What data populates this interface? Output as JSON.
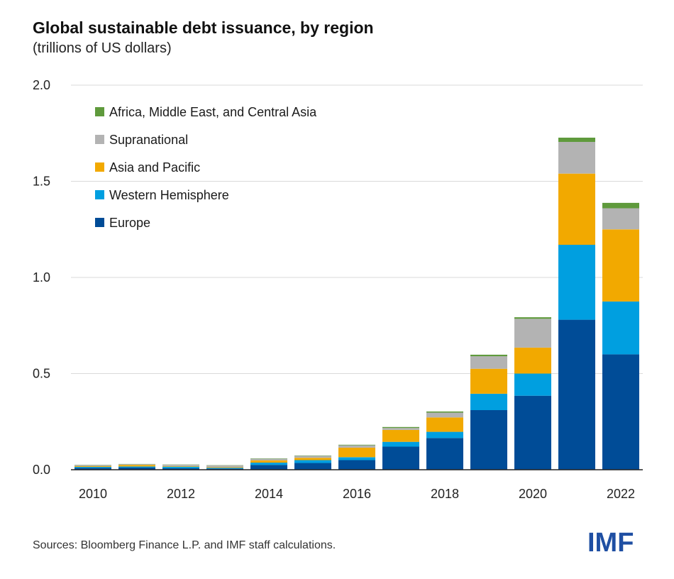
{
  "title": "Global sustainable debt issuance, by region",
  "subtitle": "(trillions of US dollars)",
  "source": "Sources: Bloomberg Finance L.P. and IMF staff calculations.",
  "logo": "IMF",
  "colors": {
    "Europe": "#004c97",
    "Western Hemisphere": "#009fe0",
    "Asia and Pacific": "#f2a900",
    "Supranational": "#b3b3b3",
    "Africa, Middle East, and Central Asia": "#5f9a3c",
    "grid": "#d9d9d9",
    "axis": "#222222"
  },
  "chart_data": {
    "type": "bar",
    "stacked": true,
    "categories": [
      "2010",
      "2011",
      "2012",
      "2013",
      "2014",
      "2015",
      "2016",
      "2017",
      "2018",
      "2019",
      "2020",
      "2021",
      "2022"
    ],
    "x_tick_labels": [
      "2010",
      "2012",
      "2014",
      "2016",
      "2018",
      "2020",
      "2022"
    ],
    "y_ticks": [
      "0.0",
      "0.5",
      "1.0",
      "1.5",
      "2.0"
    ],
    "ylim": [
      0,
      2.0
    ],
    "grid": true,
    "legend_position": "top-left",
    "legend_order": [
      "Africa, Middle East, and Central Asia",
      "Supranational",
      "Asia and Pacific",
      "Western Hemisphere",
      "Europe"
    ],
    "series": [
      {
        "name": "Europe",
        "values": [
          0.01,
          0.012,
          0.008,
          0.006,
          0.025,
          0.035,
          0.05,
          0.12,
          0.165,
          0.31,
          0.385,
          0.78,
          0.6
        ]
      },
      {
        "name": "Western Hemisphere",
        "values": [
          0.005,
          0.005,
          0.008,
          0.004,
          0.012,
          0.015,
          0.015,
          0.025,
          0.032,
          0.085,
          0.115,
          0.39,
          0.275
        ]
      },
      {
        "name": "Asia and Pacific",
        "values": [
          0.004,
          0.008,
          0.003,
          0.003,
          0.012,
          0.012,
          0.05,
          0.062,
          0.075,
          0.13,
          0.135,
          0.37,
          0.375
        ]
      },
      {
        "name": "Supranational",
        "values": [
          0.006,
          0.004,
          0.007,
          0.01,
          0.008,
          0.01,
          0.012,
          0.01,
          0.025,
          0.065,
          0.15,
          0.165,
          0.11
        ]
      },
      {
        "name": "Africa, Middle East, and Central Asia",
        "values": [
          0.001,
          0.001,
          0.001,
          0.001,
          0.002,
          0.002,
          0.003,
          0.005,
          0.006,
          0.008,
          0.008,
          0.022,
          0.028
        ]
      }
    ]
  }
}
